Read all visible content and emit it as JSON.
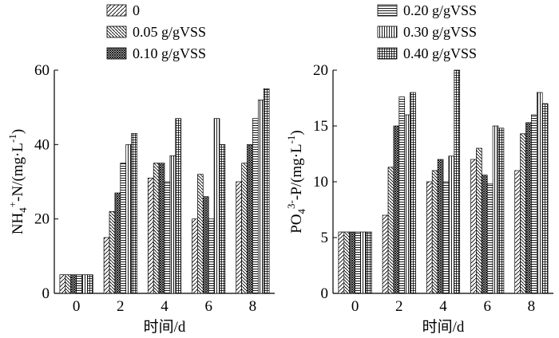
{
  "legend": [
    {
      "id": "s0",
      "label": "0",
      "pattern": "diag-fwd"
    },
    {
      "id": "s1",
      "label": "0.05 g/gVSS",
      "pattern": "diag-back"
    },
    {
      "id": "s2",
      "label": "0.10 g/gVSS",
      "pattern": "crosshatch"
    },
    {
      "id": "s3",
      "label": "0.20 g/gVSS",
      "pattern": "horizontal"
    },
    {
      "id": "s4",
      "label": "0.30 g/gVSS",
      "pattern": "vertical"
    },
    {
      "id": "s5",
      "label": "0.40 g/gVSS",
      "pattern": "grid"
    }
  ],
  "chart_data": [
    {
      "type": "bar",
      "categories": [
        "0",
        "2",
        "4",
        "6",
        "8"
      ],
      "xlabel": "时间/d",
      "ylabel": "NH4+-N/(mg·L-1)",
      "ylabel_parts": {
        "main": "NH",
        "sub1": "4",
        "sup1": "+",
        "mid": "-N/(mg·L",
        "sup2": "-1",
        "end": ")"
      },
      "ylim": [
        0,
        60
      ],
      "yticks": [
        0,
        20,
        40,
        60
      ],
      "series": [
        {
          "name": "0",
          "values": [
            5,
            15,
            31,
            20,
            30
          ]
        },
        {
          "name": "0.05 g/gVSS",
          "values": [
            5,
            22,
            35,
            32,
            35
          ]
        },
        {
          "name": "0.10 g/gVSS",
          "values": [
            5,
            27,
            35,
            26,
            40
          ]
        },
        {
          "name": "0.20 g/gVSS",
          "values": [
            5,
            35,
            30,
            20,
            47
          ]
        },
        {
          "name": "0.30 g/gVSS",
          "values": [
            5,
            40,
            37,
            47,
            52
          ]
        },
        {
          "name": "0.40 g/gVSS",
          "values": [
            5,
            43,
            47,
            40,
            55
          ]
        }
      ]
    },
    {
      "type": "bar",
      "categories": [
        "0",
        "2",
        "4",
        "6",
        "8"
      ],
      "xlabel": "时间/d",
      "ylabel": "PO43--P/(mg·L-1)",
      "ylabel_parts": {
        "main": "PO",
        "sub1": "4",
        "sup1": "3-",
        "mid": "-P/(mg·L",
        "sup2": "-1",
        "end": ")"
      },
      "ylim": [
        0,
        20
      ],
      "yticks": [
        0,
        5,
        10,
        15,
        20
      ],
      "series": [
        {
          "name": "0",
          "values": [
            5.5,
            7,
            10,
            12,
            11
          ]
        },
        {
          "name": "0.05 g/gVSS",
          "values": [
            5.5,
            11.3,
            11,
            13,
            14.3
          ]
        },
        {
          "name": "0.10 g/gVSS",
          "values": [
            5.5,
            15,
            12,
            10.6,
            15.3
          ]
        },
        {
          "name": "0.20 g/gVSS",
          "values": [
            5.5,
            17.6,
            10,
            9.8,
            16
          ]
        },
        {
          "name": "0.30 g/gVSS",
          "values": [
            5.5,
            16,
            12.3,
            15,
            18
          ]
        },
        {
          "name": "0.40 g/gVSS",
          "values": [
            5.5,
            18,
            20,
            14.8,
            17
          ]
        }
      ]
    }
  ]
}
